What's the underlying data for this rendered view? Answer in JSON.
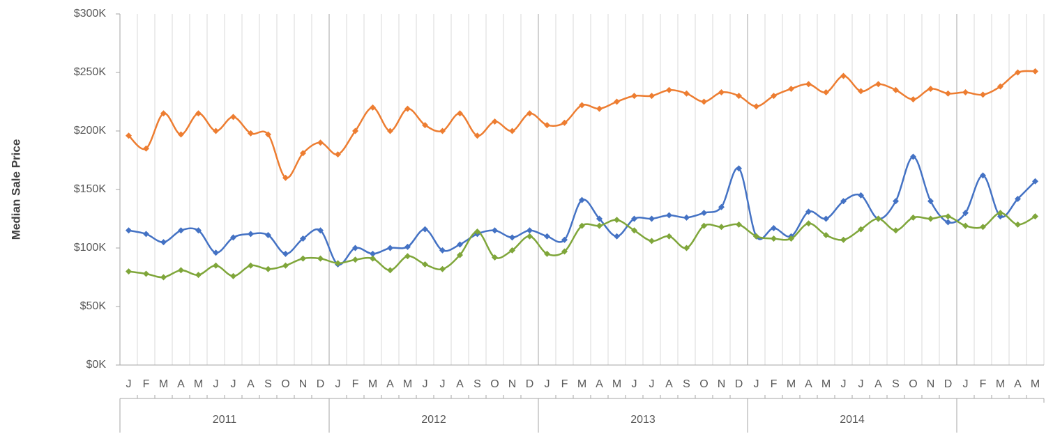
{
  "chart_data": {
    "type": "line",
    "y_axis_label": "Median Sale Price",
    "categories": [
      "J",
      "F",
      "M",
      "A",
      "M",
      "J",
      "J",
      "A",
      "S",
      "O",
      "N",
      "D",
      "J",
      "F",
      "M",
      "A",
      "M",
      "J",
      "J",
      "A",
      "S",
      "O",
      "N",
      "D",
      "J",
      "F",
      "M",
      "A",
      "M",
      "J",
      "J",
      "A",
      "S",
      "O",
      "N",
      "D",
      "J",
      "F",
      "M",
      "A",
      "M",
      "J",
      "J",
      "A",
      "S",
      "O",
      "N",
      "D",
      "J",
      "F",
      "M",
      "A",
      "M"
    ],
    "groups": [
      "2011",
      "2012",
      "2013",
      "2014",
      null
    ],
    "ylim": [
      0,
      300
    ],
    "yticks": [
      {
        "value": 0,
        "label": "$0K"
      },
      {
        "value": 50,
        "label": "$50K"
      },
      {
        "value": 100,
        "label": "$100K"
      },
      {
        "value": 150,
        "label": "$150K"
      },
      {
        "value": 200,
        "label": "$200K"
      },
      {
        "value": 250,
        "label": "$250K"
      },
      {
        "value": 300,
        "label": "$300K"
      }
    ],
    "vertical_grid": true,
    "smooth": true,
    "series": [
      {
        "color": "#ED7D31",
        "values": [
          196,
          185,
          215,
          197,
          215,
          200,
          212,
          198,
          197,
          160,
          181,
          190,
          180,
          200,
          220,
          200,
          219,
          205,
          200,
          215,
          196,
          208,
          200,
          215,
          205,
          207,
          222,
          219,
          225,
          230,
          230,
          235,
          232,
          225,
          233,
          230,
          221,
          230,
          236,
          240,
          233,
          247,
          234,
          240,
          235,
          227,
          236,
          232,
          233,
          231,
          238,
          250,
          251
        ]
      },
      {
        "color": "#4472C4",
        "values": [
          115,
          112,
          105,
          115,
          115,
          96,
          109,
          112,
          111,
          95,
          108,
          115,
          86,
          100,
          95,
          100,
          101,
          116,
          98,
          103,
          112,
          115,
          109,
          115,
          110,
          107,
          141,
          125,
          110,
          125,
          125,
          128,
          126,
          130,
          135,
          168,
          110,
          117,
          110,
          131,
          125,
          140,
          145,
          125,
          140,
          178,
          140,
          122,
          130,
          162,
          127,
          142,
          157
        ]
      },
      {
        "color": "#7FA63A",
        "values": [
          80,
          78,
          75,
          81,
          77,
          85,
          76,
          85,
          82,
          85,
          91,
          91,
          87,
          90,
          91,
          81,
          93,
          86,
          82,
          94,
          114,
          92,
          98,
          110,
          95,
          97,
          119,
          119,
          124,
          115,
          106,
          110,
          100,
          119,
          118,
          120,
          110,
          108,
          108,
          121,
          111,
          107,
          116,
          125,
          115,
          126,
          125,
          127,
          119,
          118,
          130,
          120,
          127
        ]
      }
    ]
  }
}
